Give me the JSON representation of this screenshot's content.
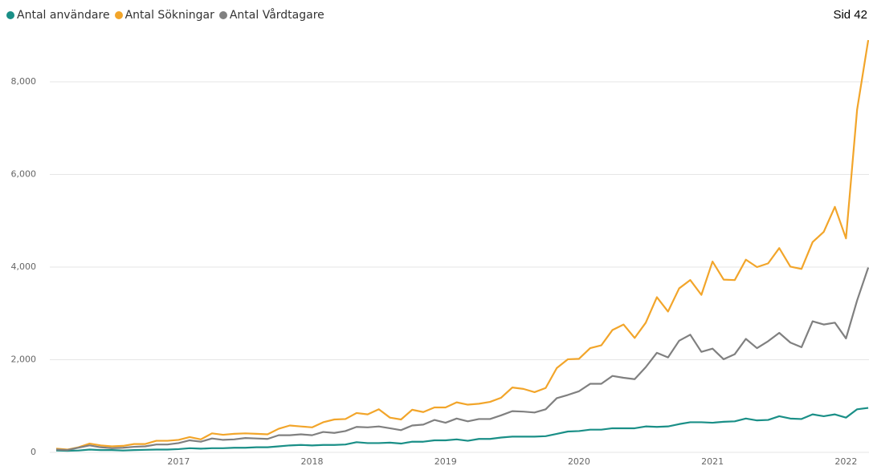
{
  "chart_data": {
    "type": "line",
    "title": "Sid 42",
    "categories": [
      null,
      null,
      null,
      null,
      null,
      null,
      null,
      null,
      null,
      null,
      null,
      "2017",
      null,
      null,
      null,
      null,
      null,
      null,
      null,
      null,
      null,
      null,
      null,
      "2018",
      null,
      null,
      null,
      null,
      null,
      null,
      null,
      null,
      null,
      null,
      null,
      "2019",
      null,
      null,
      null,
      null,
      null,
      null,
      null,
      null,
      null,
      null,
      null,
      "2020",
      null,
      null,
      null,
      null,
      null,
      null,
      null,
      null,
      null,
      null,
      null,
      "2021",
      null,
      null,
      null,
      null,
      null,
      null,
      null,
      null,
      null,
      null,
      null,
      "2022",
      null,
      null
    ],
    "series": [
      {
        "name": "Antal användare",
        "color": "#1a8f87",
        "values": [
          40,
          35,
          40,
          60,
          50,
          50,
          40,
          50,
          55,
          60,
          60,
          70,
          90,
          80,
          90,
          90,
          100,
          100,
          110,
          110,
          130,
          150,
          160,
          150,
          160,
          160,
          170,
          220,
          200,
          200,
          210,
          190,
          230,
          230,
          260,
          260,
          280,
          250,
          290,
          290,
          320,
          340,
          340,
          340,
          350,
          400,
          450,
          460,
          490,
          490,
          520,
          520,
          520,
          560,
          550,
          560,
          610,
          650,
          650,
          640,
          660,
          670,
          730,
          690,
          700,
          780,
          730,
          720,
          820,
          780,
          820,
          750,
          930,
          960
        ]
      },
      {
        "name": "Antal Sökningar",
        "color": "#f2a52a",
        "values": [
          80,
          60,
          110,
          190,
          150,
          130,
          140,
          180,
          180,
          250,
          250,
          270,
          330,
          280,
          410,
          380,
          400,
          410,
          400,
          390,
          510,
          580,
          560,
          540,
          650,
          710,
          720,
          850,
          820,
          930,
          750,
          710,
          920,
          870,
          970,
          970,
          1080,
          1030,
          1050,
          1090,
          1180,
          1400,
          1370,
          1300,
          1390,
          1820,
          2010,
          2020,
          2250,
          2310,
          2640,
          2760,
          2470,
          2800,
          3350,
          3040,
          3540,
          3720,
          3400,
          4120,
          3730,
          3720,
          4160,
          4000,
          4080,
          4410,
          4010,
          3960,
          4540,
          4760,
          5300,
          4620,
          7400,
          8900
        ]
      },
      {
        "name": "Antal Vårdtagare",
        "color": "#808080",
        "values": [
          60,
          50,
          100,
          150,
          110,
          90,
          100,
          120,
          130,
          170,
          170,
          200,
          260,
          230,
          300,
          270,
          280,
          310,
          300,
          290,
          370,
          370,
          390,
          370,
          440,
          420,
          460,
          550,
          540,
          560,
          520,
          480,
          580,
          600,
          700,
          640,
          730,
          670,
          720,
          720,
          800,
          890,
          880,
          860,
          930,
          1170,
          1240,
          1320,
          1480,
          1480,
          1650,
          1610,
          1580,
          1840,
          2150,
          2050,
          2410,
          2540,
          2170,
          2240,
          2010,
          2120,
          2450,
          2250,
          2400,
          2580,
          2370,
          2270,
          2830,
          2760,
          2800,
          2460,
          3280,
          3990
        ]
      }
    ],
    "ylim": [
      0,
      9000
    ],
    "yticks": [
      0,
      {
        "value": 2000,
        "label": "2,000"
      },
      {
        "value": 4000,
        "label": "4,000"
      },
      {
        "value": 6000,
        "label": "6,000"
      },
      {
        "value": 8000,
        "label": "8,000"
      }
    ],
    "grid": true,
    "legend": "top-left"
  }
}
